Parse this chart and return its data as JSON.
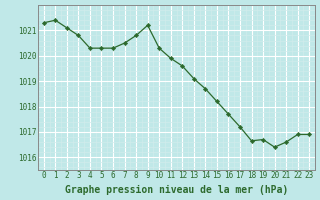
{
  "x": [
    0,
    1,
    2,
    3,
    4,
    5,
    6,
    7,
    8,
    9,
    10,
    11,
    12,
    13,
    14,
    15,
    16,
    17,
    18,
    19,
    20,
    21,
    22,
    23
  ],
  "y": [
    1021.3,
    1021.4,
    1021.1,
    1020.8,
    1020.3,
    1020.3,
    1020.3,
    1020.5,
    1020.8,
    1021.2,
    1020.3,
    1019.9,
    1019.6,
    1019.1,
    1018.7,
    1018.2,
    1017.7,
    1017.2,
    1016.65,
    1016.7,
    1016.4,
    1016.6,
    1016.9,
    1016.9
  ],
  "line_color": "#2d6a2d",
  "marker_color": "#2d6a2d",
  "bg_color": "#c0e8e8",
  "grid_major_color": "#ffffff",
  "grid_minor_color": "#d0ecec",
  "xlabel": "Graphe pression niveau de la mer (hPa)",
  "xlabel_fontsize": 7,
  "ytick_labels": [
    "1016",
    "1017",
    "1018",
    "1019",
    "1020",
    "1021"
  ],
  "ylim": [
    1015.5,
    1022.0
  ],
  "xlim": [
    -0.5,
    23.5
  ],
  "xtick_labels": [
    "0",
    "1",
    "2",
    "3",
    "4",
    "5",
    "6",
    "7",
    "8",
    "9",
    "10",
    "11",
    "12",
    "13",
    "14",
    "15",
    "16",
    "17",
    "18",
    "19",
    "20",
    "21",
    "22",
    "23"
  ],
  "yticks": [
    1016,
    1017,
    1018,
    1019,
    1020,
    1021
  ],
  "xticks": [
    0,
    1,
    2,
    3,
    4,
    5,
    6,
    7,
    8,
    9,
    10,
    11,
    12,
    13,
    14,
    15,
    16,
    17,
    18,
    19,
    20,
    21,
    22,
    23
  ],
  "spine_color": "#888888",
  "tick_label_color": "#2d6a2d"
}
